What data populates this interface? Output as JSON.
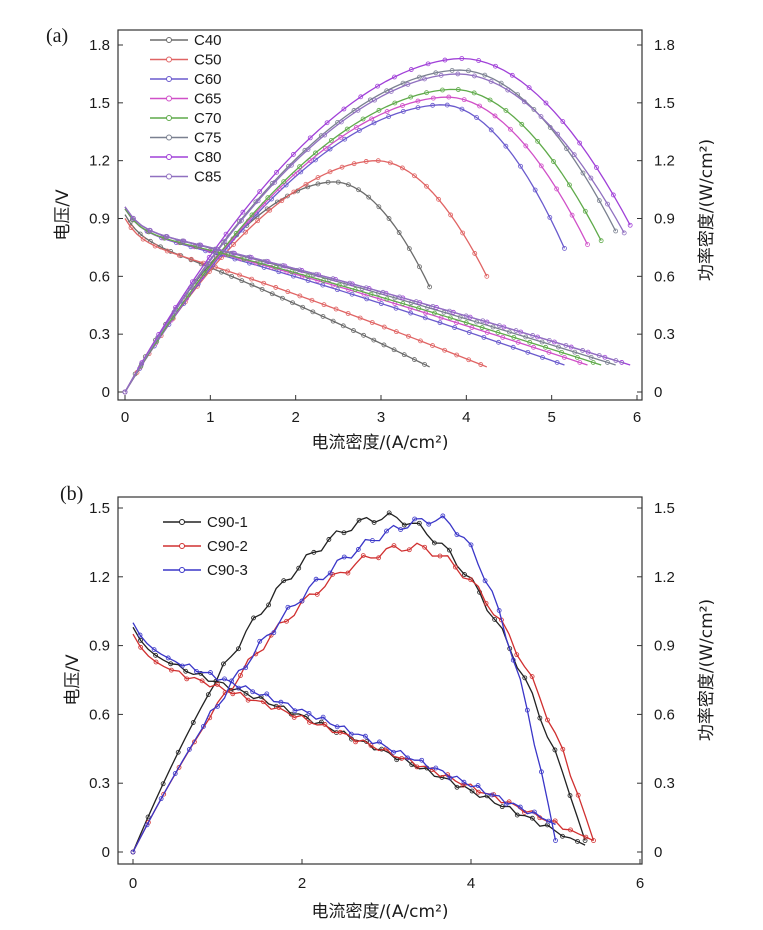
{
  "chart_data": [
    {
      "panel_label": "(a)",
      "type": "line",
      "xlabel": "电流密度/(A/cm²)",
      "ylabel": "电压/V",
      "y2label": "功率密度/(W/cm²)",
      "xlim": [
        0,
        6
      ],
      "ylim": [
        0,
        1.8
      ],
      "y2lim": [
        0,
        1.8
      ],
      "xticks": [
        "0",
        "1",
        "2",
        "3",
        "4",
        "5",
        "6"
      ],
      "yticks": [
        "0",
        "0.3",
        "0.6",
        "0.9",
        "1.2",
        "1.5",
        "1.8"
      ],
      "y2ticks": [
        "0",
        "0.3",
        "0.6",
        "0.9",
        "1.2",
        "1.5",
        "1.8"
      ],
      "legend_position": "top-left",
      "series": [
        {
          "name": "C40",
          "color": "#6b6b6b",
          "pmax": 1.09,
          "xpeak": 2.45,
          "xend": 3.57,
          "v0": 0.92,
          "vend": 0.13
        },
        {
          "name": "C50",
          "color": "#e06464",
          "pmax": 1.2,
          "xpeak": 2.95,
          "xend": 4.24,
          "v0": 0.9,
          "vend": 0.13
        },
        {
          "name": "C60",
          "color": "#6a5acd",
          "pmax": 1.49,
          "xpeak": 3.72,
          "xend": 5.15,
          "v0": 0.95,
          "vend": 0.14
        },
        {
          "name": "C65",
          "color": "#d050c8",
          "pmax": 1.53,
          "xpeak": 3.78,
          "xend": 5.42,
          "v0": 0.95,
          "vend": 0.14
        },
        {
          "name": "C70",
          "color": "#5faa4a",
          "pmax": 1.57,
          "xpeak": 3.85,
          "xend": 5.58,
          "v0": 0.95,
          "vend": 0.14
        },
        {
          "name": "C75",
          "color": "#7a8090",
          "pmax": 1.67,
          "xpeak": 3.92,
          "xend": 5.75,
          "v0": 0.96,
          "vend": 0.14
        },
        {
          "name": "C80",
          "color": "#a040d8",
          "pmax": 1.73,
          "xpeak": 3.95,
          "xend": 5.92,
          "v0": 0.96,
          "vend": 0.14
        },
        {
          "name": "C85",
          "color": "#9070c0",
          "pmax": 1.65,
          "xpeak": 3.9,
          "xend": 5.85,
          "v0": 0.96,
          "vend": 0.15
        }
      ]
    },
    {
      "panel_label": "(b)",
      "type": "line",
      "xlabel": "电流密度/(A/cm²)",
      "ylabel": "电压/V",
      "y2label": "功率密度/(W/cm²)",
      "xlim": [
        0,
        6
      ],
      "ylim": [
        0,
        1.5
      ],
      "y2lim": [
        0,
        1.5
      ],
      "xticks": [
        "0",
        "2",
        "4",
        "6"
      ],
      "yticks": [
        "0",
        "0.3",
        "0.6",
        "0.9",
        "1.2",
        "1.5"
      ],
      "y2ticks": [
        "0",
        "0.3",
        "0.6",
        "0.9",
        "1.2",
        "1.5"
      ],
      "legend_position": "top-left",
      "series": [
        {
          "name": "C90-1",
          "color": "#222222",
          "pmax": 1.46,
          "xpeak": 3.0,
          "xend": 5.35,
          "v0": 0.98,
          "vend": 0.03
        },
        {
          "name": "C90-2",
          "color": "#d03030",
          "pmax": 1.33,
          "xpeak": 3.3,
          "xend": 5.45,
          "v0": 0.95,
          "vend": 0.05
        },
        {
          "name": "C90-3",
          "color": "#3a36c8",
          "pmax": 1.45,
          "xpeak": 3.6,
          "xend": 5.0,
          "v0": 1.0,
          "vend": 0.12
        }
      ]
    }
  ]
}
